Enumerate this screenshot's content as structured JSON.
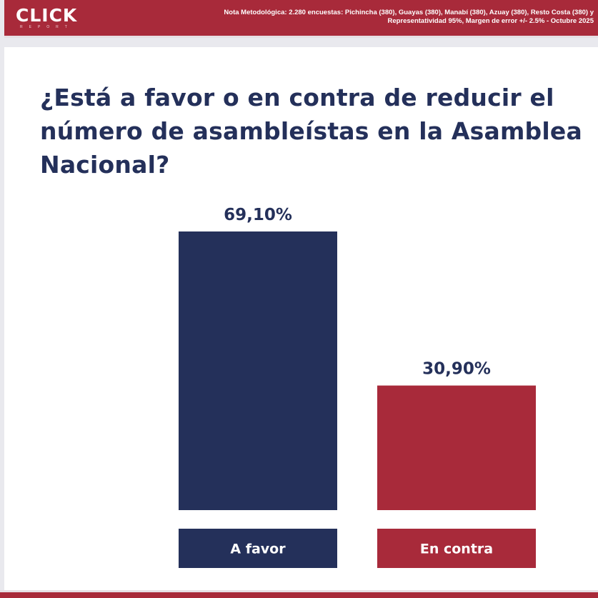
{
  "header": {
    "brand": "CLICK",
    "brand_sub": "REPORT",
    "methodology_line1": "Nota Metodológica: 2.280 encuestas: Pichincha (380), Guayas (380), Manabí (380), Azuay (380), Resto Costa (380) y",
    "methodology_line2": "Representatividad 95%, Margen de error +/- 2.5% - Octubre 2025"
  },
  "colors": {
    "brand_red": "#a82a3a",
    "navy": "#24305a",
    "against_red": "#a82a3a"
  },
  "chart_data": {
    "type": "bar",
    "title": "¿Está a favor o en contra de reducir el número de asambleístas en la Asamblea Nacional?",
    "categories": [
      "A favor",
      "En contra"
    ],
    "values": [
      69.1,
      30.9
    ],
    "value_labels": [
      "69,10%",
      "30,90%"
    ],
    "colors": [
      "#24305a",
      "#a82a3a"
    ],
    "ylim": [
      0,
      69.1
    ],
    "grid": false,
    "legend": "none"
  }
}
